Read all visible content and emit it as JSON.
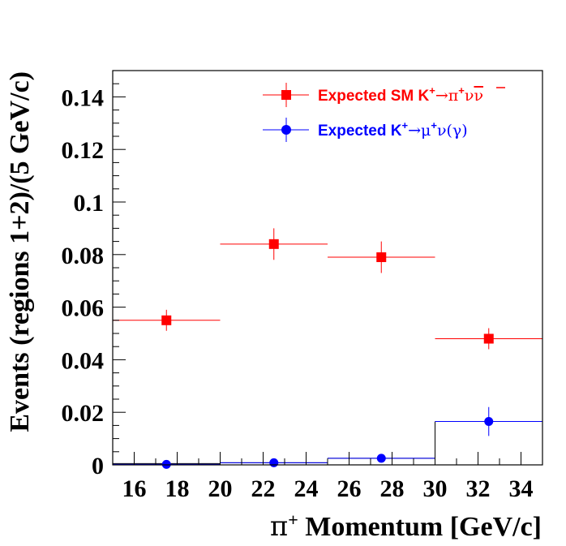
{
  "chart_data": {
    "type": "scatter",
    "title": "",
    "xlabel_symbol": "π",
    "xlabel_sup": "+",
    "xlabel_rest": " Momentum [GeV/c]",
    "ylabel": "Events (regions 1+2)/(5 GeV/c)",
    "xlim": [
      15,
      35
    ],
    "ylim": [
      0,
      0.15
    ],
    "x_ticks": [
      16,
      18,
      20,
      22,
      24,
      26,
      28,
      30,
      32,
      34
    ],
    "x_tick_labels": [
      "16",
      "18",
      "20",
      "22",
      "24",
      "26",
      "28",
      "30",
      "32",
      "34"
    ],
    "y_ticks": [
      0,
      0.02,
      0.04,
      0.06,
      0.08,
      0.1,
      0.12,
      0.14
    ],
    "y_tick_labels": [
      "0",
      "0.02",
      "0.04",
      "0.06",
      "0.08",
      "0.1",
      "0.12",
      "0.14"
    ],
    "series": [
      {
        "name": "Expected SM K+→π+νν̄",
        "color": "#ff0000",
        "marker": "square",
        "points": [
          {
            "x": 17.5,
            "xlo": 15,
            "xhi": 20,
            "y": 0.055,
            "ylo": 0.051,
            "yhi": 0.059
          },
          {
            "x": 22.5,
            "xlo": 20,
            "xhi": 25,
            "y": 0.084,
            "ylo": 0.078,
            "yhi": 0.09
          },
          {
            "x": 27.5,
            "xlo": 25,
            "xhi": 30,
            "y": 0.079,
            "ylo": 0.073,
            "yhi": 0.085
          },
          {
            "x": 32.5,
            "xlo": 30,
            "xhi": 35,
            "y": 0.048,
            "ylo": 0.044,
            "yhi": 0.052
          }
        ]
      },
      {
        "name": "Expected K+→μ+ν(γ)",
        "color": "#0000ff",
        "marker": "circle",
        "points": [
          {
            "x": 17.5,
            "xlo": 15,
            "xhi": 20,
            "y": 0.0002,
            "ylo": 0.0,
            "yhi": 0.0004
          },
          {
            "x": 22.5,
            "xlo": 20,
            "xhi": 25,
            "y": 0.0008,
            "ylo": 0.0004,
            "yhi": 0.0012
          },
          {
            "x": 27.5,
            "xlo": 25,
            "xhi": 30,
            "y": 0.0025,
            "ylo": 0.0018,
            "yhi": 0.0032
          },
          {
            "x": 32.5,
            "xlo": 30,
            "xhi": 35,
            "y": 0.0165,
            "ylo": 0.011,
            "yhi": 0.022
          }
        ]
      }
    ],
    "histogram": {
      "color": "#000000",
      "bins": [
        {
          "xlo": 15,
          "xhi": 20,
          "y": 0.0005
        },
        {
          "xlo": 20,
          "xhi": 25,
          "y": 0.0008
        },
        {
          "xlo": 25,
          "xhi": 30,
          "y": 0.0025
        },
        {
          "xlo": 30,
          "xhi": 35,
          "y": 0.0165
        }
      ]
    },
    "legend": {
      "position": "top-right",
      "entries": [
        {
          "prefix": "Expected SM K",
          "sup1": "+",
          "arrow": "→",
          "pi": "π",
          "sup2": "+",
          "nu1": "ν",
          "nu2": "ν",
          "color": "#ff0000"
        },
        {
          "prefix": "Expected K",
          "sup1": "+",
          "arrow": "→",
          "mu": "μ",
          "sup2": "+",
          "rest": "ν(γ)",
          "color": "#0000ff"
        }
      ]
    }
  }
}
